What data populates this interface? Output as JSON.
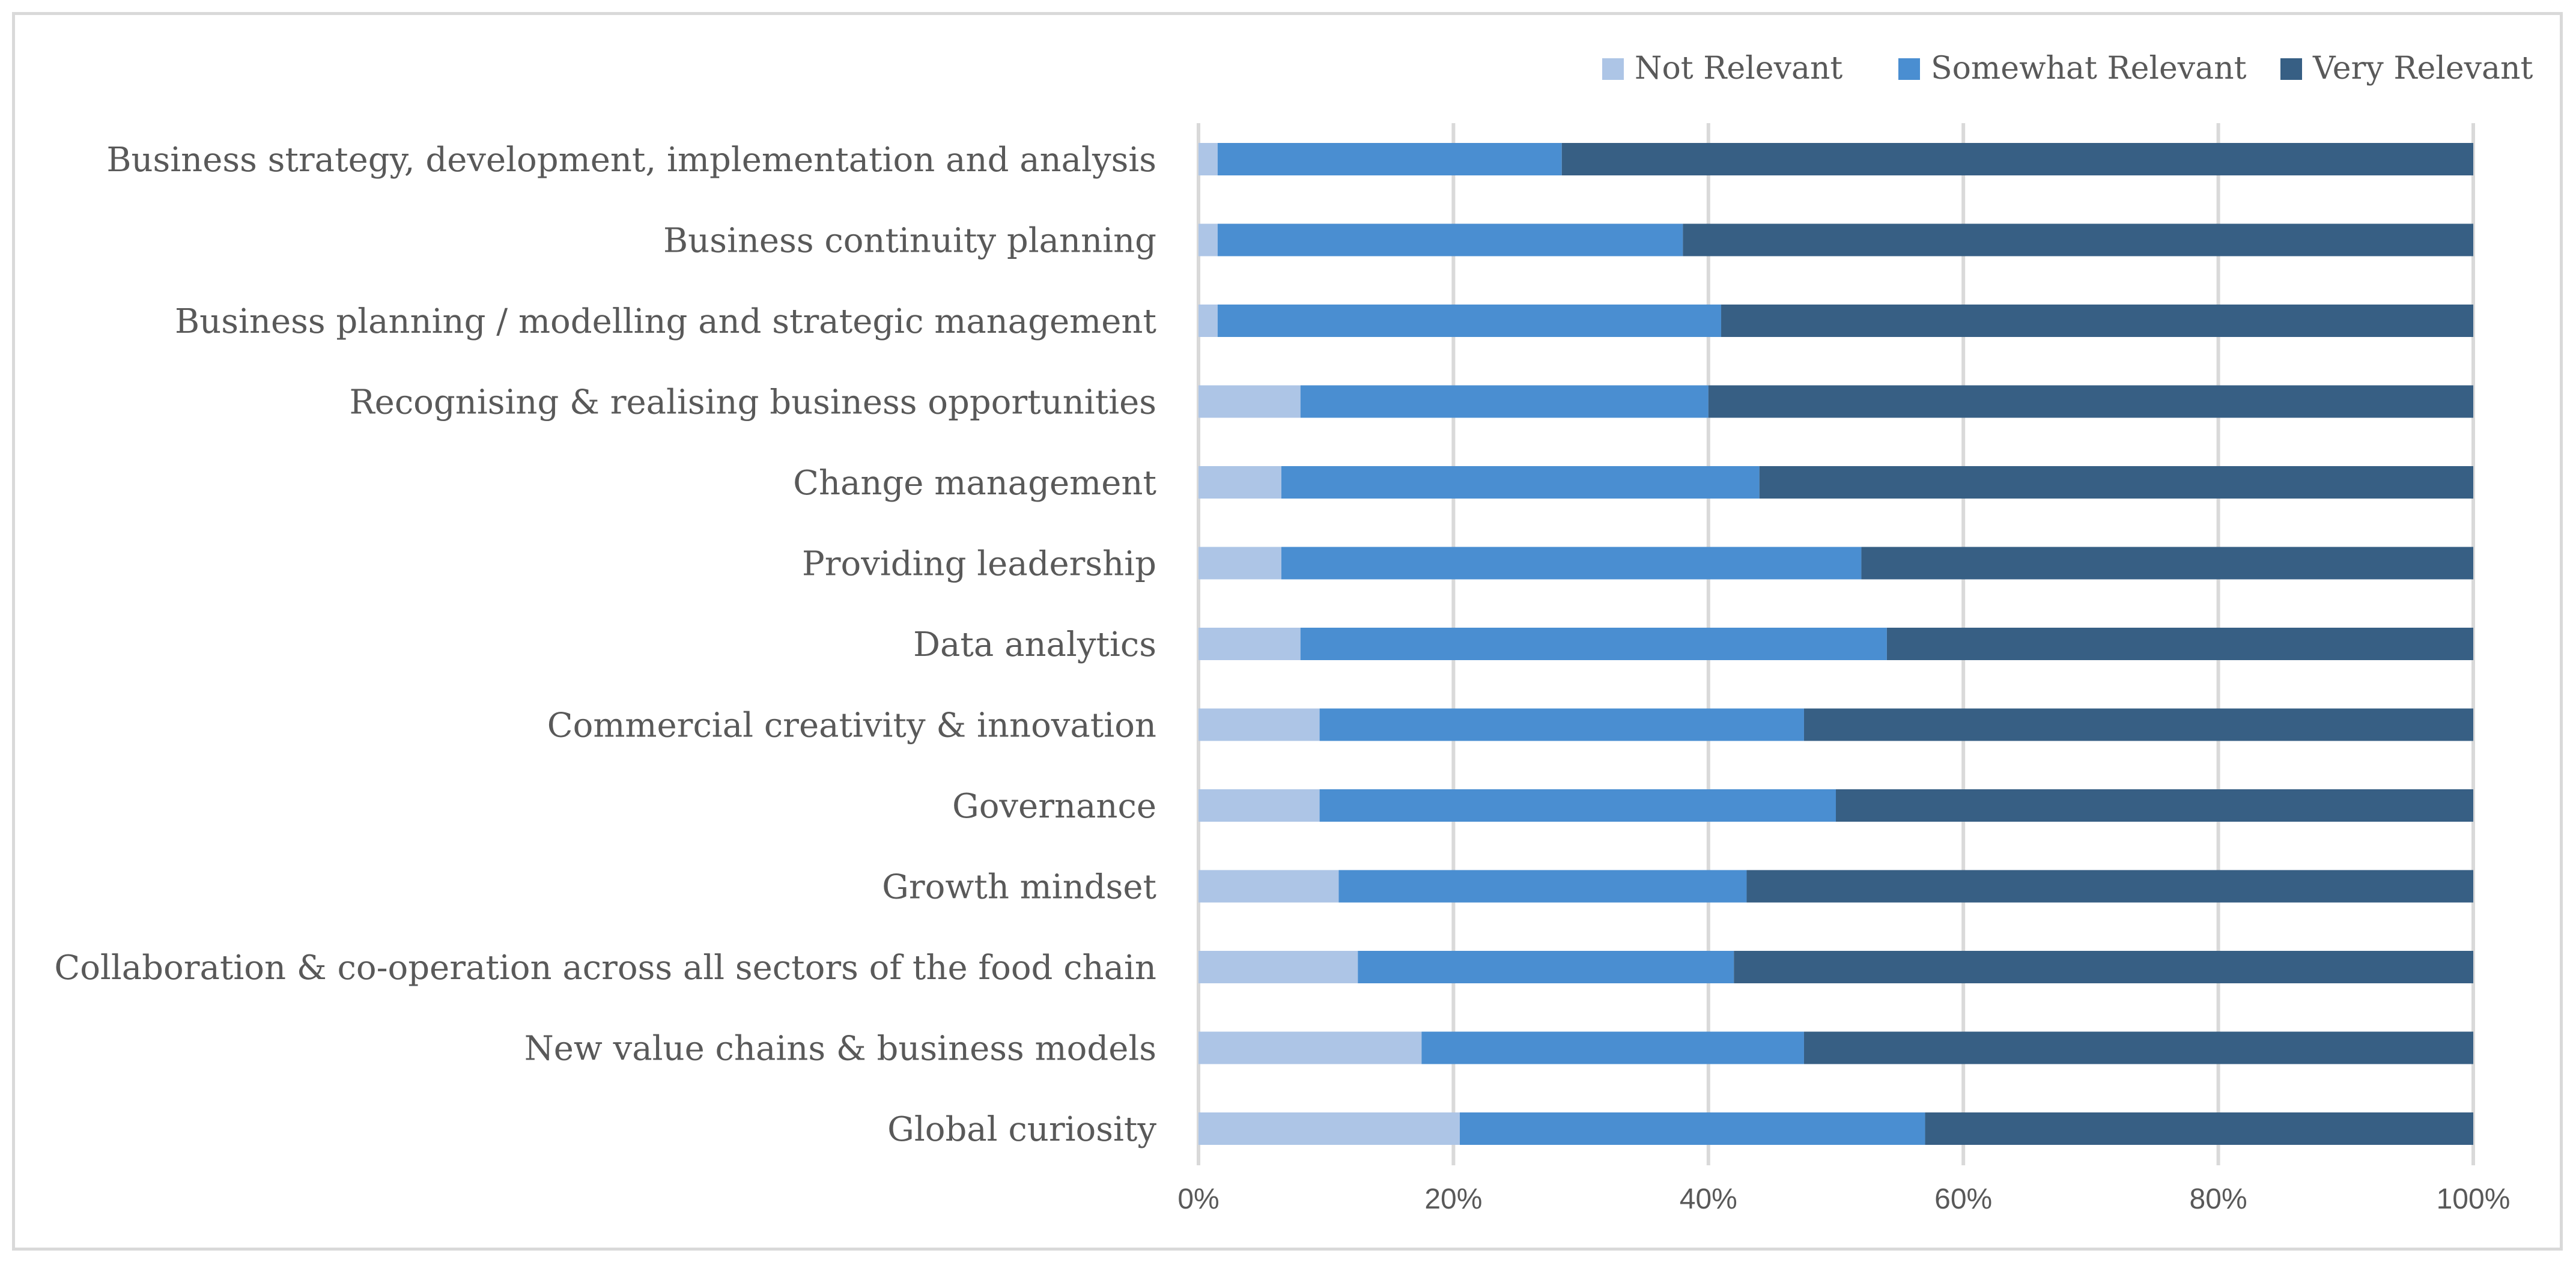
{
  "chart_data": {
    "type": "bar",
    "orientation": "horizontal",
    "stacked": "percent",
    "categories": [
      "Business strategy, development, implementation and analysis",
      "Business continuity planning",
      "Business planning / modelling and strategic management",
      "Recognising & realising business opportunities",
      "Change management",
      "Providing leadership",
      "Data analytics",
      "Commercial creativity & innovation",
      "Governance",
      "Growth mindset",
      "Collaboration & co-operation across all sectors of the food chain",
      "New value chains & business models",
      "Global curiosity"
    ],
    "series": [
      {
        "name": "Not Relevant",
        "color": "#adc5e6",
        "values": [
          1.5,
          1.5,
          1.5,
          8.0,
          6.5,
          6.5,
          8.0,
          9.5,
          9.5,
          11.0,
          12.5,
          17.5,
          20.5
        ]
      },
      {
        "name": "Somewhat Relevant",
        "color": "#4a8ed1",
        "values": [
          27.0,
          36.5,
          39.5,
          32.0,
          37.5,
          45.5,
          46.0,
          38.0,
          40.5,
          32.0,
          29.5,
          30.0,
          36.5
        ]
      },
      {
        "name": "Very Relevant",
        "color": "#375f84",
        "values": [
          71.5,
          62.0,
          59.0,
          60.0,
          56.0,
          48.0,
          46.0,
          52.5,
          50.0,
          57.0,
          58.0,
          52.5,
          43.0
        ]
      }
    ],
    "xlim": [
      0,
      100
    ],
    "x_ticks": [
      "0%",
      "20%",
      "40%",
      "60%",
      "80%",
      "100%"
    ],
    "grid": "vertical",
    "legend_position": "top-right",
    "title": "",
    "xlabel": "",
    "ylabel": ""
  }
}
